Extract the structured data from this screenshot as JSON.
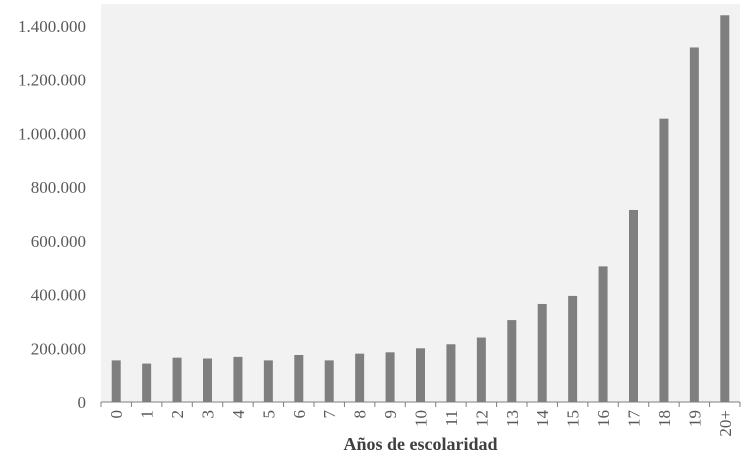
{
  "chart_data": {
    "type": "bar",
    "title": "",
    "xlabel": "Años de escolaridad",
    "ylabel": "",
    "categories": [
      "0",
      "1",
      "2",
      "3",
      "4",
      "5",
      "6",
      "7",
      "8",
      "9",
      "10",
      "11",
      "12",
      "13",
      "14",
      "15",
      "16",
      "17",
      "18",
      "19",
      "20+"
    ],
    "values": [
      155000,
      143000,
      165000,
      162000,
      168000,
      155000,
      175000,
      155000,
      180000,
      185000,
      200000,
      215000,
      240000,
      305000,
      365000,
      395000,
      505000,
      715000,
      1055000,
      1320000,
      1440000
    ],
    "ylim": [
      0,
      1400000
    ],
    "yticks": [
      0,
      200000,
      400000,
      600000,
      800000,
      1000000,
      1200000,
      1400000
    ],
    "ytick_labels": [
      "0",
      "200.000",
      "400.000",
      "600.000",
      "800.000",
      "1.000.000",
      "1.200.000",
      "1.400.000"
    ],
    "grid": false,
    "legend": "none",
    "colors": {
      "bar": "#7f7f7f",
      "plot_background": "#f2f2f2",
      "axis": "#7f7f7f"
    }
  }
}
